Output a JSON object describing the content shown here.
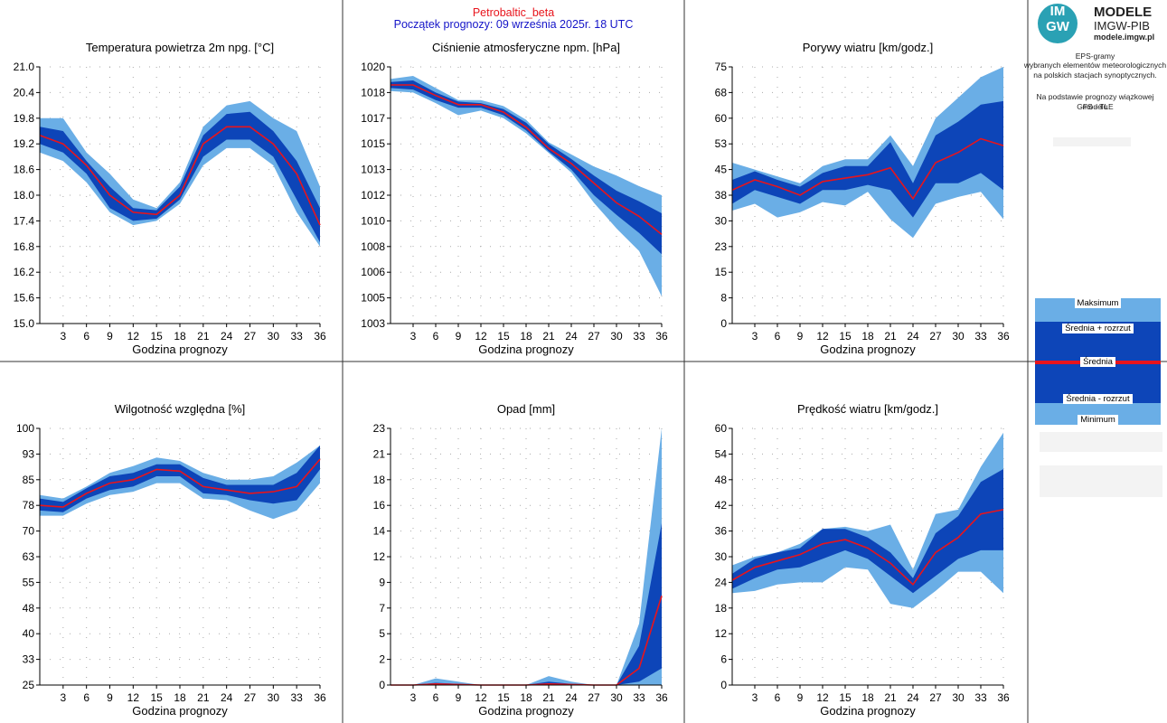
{
  "header": {
    "title": "Petrobaltic_beta",
    "subtitle": "Początek prognozy: 09 września 2025r. 18 UTC"
  },
  "logo": {
    "mark_top": "IM",
    "mark_bottom": "GW",
    "line1": "MODELE",
    "line2": "IMGW-PIB",
    "line3": "modele.imgw.pl"
  },
  "description": [
    "EPS-gramy",
    "wybranych elementów meteorologicznych",
    "na polskich stacjach synoptycznych.",
    "Na podstawie prognozy wiązkowej modelu",
    "GFS - TLE"
  ],
  "legend": {
    "max": "Maksimum",
    "plus": "Średnia + rozrzut",
    "mean": "Średnia",
    "minus": "Średnia - rozrzut",
    "min": "Minimum"
  },
  "colors": {
    "outer_band": "#6aaee6",
    "inner_band": "#0d45b8",
    "mean_line": "#e8141c",
    "title_red": "#e8141c",
    "subtitle_blue": "#1414c8"
  },
  "chart_data": [
    {
      "type": "area",
      "title": "Temperatura powietrza 2m npg. [°C]",
      "xlabel": "Godzina prognozy",
      "ylim": [
        15.0,
        21.0
      ],
      "yticks": [
        "15.0",
        "15.6",
        "16.2",
        "16.8",
        "17.4",
        "18.0",
        "18.6",
        "19.2",
        "19.8",
        "20.4",
        "21.0"
      ],
      "x": [
        0,
        3,
        6,
        9,
        12,
        15,
        18,
        21,
        24,
        27,
        30,
        33,
        36
      ],
      "xticks": [
        3,
        6,
        9,
        12,
        15,
        18,
        21,
        24,
        27,
        30,
        33,
        36
      ],
      "series": [
        {
          "role": "max",
          "values": [
            19.8,
            19.8,
            19.0,
            18.5,
            17.9,
            17.7,
            18.3,
            19.6,
            20.1,
            20.2,
            19.8,
            19.5,
            18.2
          ]
        },
        {
          "role": "mean_plus",
          "values": [
            19.6,
            19.5,
            18.8,
            18.2,
            17.7,
            17.65,
            18.2,
            19.4,
            19.9,
            19.95,
            19.5,
            18.8,
            17.7
          ]
        },
        {
          "role": "mean",
          "values": [
            19.4,
            19.2,
            18.7,
            18.0,
            17.6,
            17.55,
            18.0,
            19.2,
            19.6,
            19.6,
            19.2,
            18.5,
            17.3
          ]
        },
        {
          "role": "mean_minus",
          "values": [
            19.2,
            19.0,
            18.5,
            17.7,
            17.4,
            17.45,
            17.9,
            18.9,
            19.3,
            19.3,
            18.9,
            17.9,
            16.9
          ]
        },
        {
          "role": "min",
          "values": [
            19.0,
            18.8,
            18.3,
            17.6,
            17.3,
            17.4,
            17.8,
            18.7,
            19.1,
            19.1,
            18.7,
            17.6,
            16.8
          ]
        }
      ]
    },
    {
      "type": "area",
      "title": "Ciśnienie atmosferyczne npm. [hPa]",
      "xlabel": "Godzina prognozy",
      "ylim": [
        1003,
        1020
      ],
      "yticks": [
        "1003",
        "1005",
        "1006",
        "1008",
        "1010",
        "1012",
        "1013",
        "1015",
        "1017",
        "1018",
        "1020"
      ],
      "x": [
        0,
        3,
        6,
        9,
        12,
        15,
        18,
        21,
        24,
        27,
        30,
        33,
        36
      ],
      "xticks": [
        3,
        6,
        9,
        12,
        15,
        18,
        21,
        24,
        27,
        30,
        33,
        36
      ],
      "series": [
        {
          "role": "max",
          "values": [
            1019.2,
            1019.4,
            1018.6,
            1017.8,
            1017.8,
            1017.4,
            1016.5,
            1015.0,
            1014.2,
            1013.4,
            1012.8,
            1012.1,
            1011.5
          ]
        },
        {
          "role": "mean_plus",
          "values": [
            1019.0,
            1019.1,
            1018.3,
            1017.7,
            1017.6,
            1017.2,
            1016.3,
            1014.9,
            1013.9,
            1012.8,
            1011.8,
            1011.1,
            1010.3
          ]
        },
        {
          "role": "mean",
          "values": [
            1018.8,
            1018.8,
            1018.1,
            1017.5,
            1017.5,
            1017.0,
            1016.0,
            1014.6,
            1013.6,
            1012.3,
            1011.0,
            1010.1,
            1008.9
          ]
        },
        {
          "role": "mean_minus",
          "values": [
            1018.6,
            1018.5,
            1017.8,
            1017.3,
            1017.3,
            1016.8,
            1015.8,
            1014.4,
            1013.2,
            1011.5,
            1010.2,
            1009.0,
            1007.6
          ]
        },
        {
          "role": "min",
          "values": [
            1018.4,
            1018.3,
            1017.6,
            1016.8,
            1017.1,
            1016.6,
            1015.6,
            1014.3,
            1013.0,
            1011.0,
            1009.3,
            1007.8,
            1004.8
          ]
        }
      ]
    },
    {
      "type": "area",
      "title": "Porywy wiatru [km/godz.]",
      "xlabel": "Godzina prognozy",
      "ylim": [
        0,
        75
      ],
      "yticks": [
        "0",
        "8",
        "15",
        "23",
        "30",
        "38",
        "45",
        "53",
        "60",
        "68",
        "75"
      ],
      "x": [
        0,
        3,
        6,
        9,
        12,
        15,
        18,
        21,
        24,
        27,
        30,
        33,
        36
      ],
      "xticks": [
        3,
        6,
        9,
        12,
        15,
        18,
        21,
        24,
        27,
        30,
        33,
        36
      ],
      "series": [
        {
          "role": "max",
          "values": [
            47,
            45,
            43,
            41,
            46,
            48,
            48,
            55,
            46,
            60,
            66,
            72,
            75
          ]
        },
        {
          "role": "mean_plus",
          "values": [
            42,
            44.5,
            42,
            40,
            44,
            46,
            46,
            53,
            41,
            55,
            59,
            64,
            65
          ]
        },
        {
          "role": "mean",
          "values": [
            39,
            42,
            40,
            37.5,
            41.5,
            42.5,
            43.5,
            45.5,
            36.5,
            47,
            50,
            54,
            52
          ]
        },
        {
          "role": "mean_minus",
          "values": [
            35,
            39,
            37,
            35,
            39,
            39,
            40.5,
            39,
            31,
            41,
            41,
            44,
            39
          ]
        },
        {
          "role": "min",
          "values": [
            33,
            35,
            31,
            32.5,
            35.5,
            34.5,
            38.5,
            30.5,
            25,
            35,
            37,
            38.5,
            30.5
          ]
        }
      ]
    },
    {
      "type": "area",
      "title": "Wilgotność względna [%]",
      "xlabel": "Godzina prognozy",
      "ylim": [
        25,
        100
      ],
      "yticks": [
        "25",
        "33",
        "40",
        "48",
        "55",
        "63",
        "70",
        "78",
        "85",
        "93",
        "100"
      ],
      "x": [
        0,
        3,
        6,
        9,
        12,
        15,
        18,
        21,
        24,
        27,
        30,
        33,
        36
      ],
      "xticks": [
        3,
        6,
        9,
        12,
        15,
        18,
        21,
        24,
        27,
        30,
        33,
        36
      ],
      "series": [
        {
          "role": "max",
          "values": [
            80.5,
            79.5,
            83,
            87,
            89,
            91.5,
            90.5,
            87,
            85,
            85,
            86,
            90,
            95
          ]
        },
        {
          "role": "mean_plus",
          "values": [
            79.5,
            78.5,
            82.5,
            86,
            87,
            89.5,
            89.5,
            85.5,
            83.5,
            83.5,
            83.5,
            87,
            95
          ]
        },
        {
          "role": "mean",
          "values": [
            77.5,
            77,
            81,
            84,
            85,
            88,
            87.5,
            83,
            82,
            81,
            81.5,
            83,
            91
          ]
        },
        {
          "role": "mean_minus",
          "values": [
            76,
            75.5,
            79.5,
            82,
            83,
            86,
            86,
            81,
            80.5,
            79,
            78,
            79,
            88
          ]
        },
        {
          "role": "min",
          "values": [
            74.5,
            74.5,
            78,
            80.5,
            81.5,
            84,
            84,
            79.5,
            79,
            76,
            73.5,
            76,
            84
          ]
        }
      ]
    },
    {
      "type": "area",
      "title": "Opad [mm]",
      "xlabel": "Godzina prognozy",
      "ylim": [
        0,
        23
      ],
      "yticks": [
        "0",
        "2",
        "5",
        "7",
        "9",
        "12",
        "14",
        "16",
        "18",
        "21",
        "23"
      ],
      "x": [
        0,
        3,
        6,
        9,
        12,
        15,
        18,
        21,
        24,
        27,
        30,
        33,
        36
      ],
      "xticks": [
        3,
        6,
        9,
        12,
        15,
        18,
        21,
        24,
        27,
        30,
        33,
        36
      ],
      "series": [
        {
          "role": "max",
          "values": [
            0,
            0,
            0.6,
            0.3,
            0,
            0,
            0,
            0.8,
            0.3,
            0,
            0,
            5.5,
            23
          ]
        },
        {
          "role": "mean_plus",
          "values": [
            0,
            0,
            0.2,
            0.1,
            0,
            0,
            0,
            0.3,
            0.1,
            0,
            0,
            3.5,
            14.5
          ]
        },
        {
          "role": "mean",
          "values": [
            0,
            0,
            0.1,
            0.05,
            0,
            0,
            0,
            0.1,
            0.05,
            0,
            0,
            1.5,
            8
          ]
        },
        {
          "role": "mean_minus",
          "values": [
            0,
            0,
            0,
            0,
            0,
            0,
            0,
            0,
            0,
            0,
            0,
            0.3,
            1.5
          ]
        },
        {
          "role": "min",
          "values": [
            0,
            0,
            0,
            0,
            0,
            0,
            0,
            0,
            0,
            0,
            0,
            0,
            0
          ]
        }
      ]
    },
    {
      "type": "area",
      "title": "Prędkość wiatru [km/godz.]",
      "xlabel": "Godzina prognozy",
      "ylim": [
        0,
        60
      ],
      "yticks": [
        "0",
        "6",
        "12",
        "18",
        "24",
        "30",
        "36",
        "42",
        "48",
        "54",
        "60"
      ],
      "x": [
        0,
        3,
        6,
        9,
        12,
        15,
        18,
        21,
        24,
        27,
        30,
        33,
        36
      ],
      "xticks": [
        3,
        6,
        9,
        12,
        15,
        18,
        21,
        24,
        27,
        30,
        33,
        36
      ],
      "series": [
        {
          "role": "max",
          "values": [
            28,
            30,
            31,
            33,
            36.5,
            37,
            36,
            37.5,
            27,
            40,
            41,
            51,
            59
          ]
        },
        {
          "role": "mean_plus",
          "values": [
            26,
            29.5,
            31,
            32,
            36.5,
            36.5,
            34.5,
            31,
            25,
            35.5,
            39.5,
            47.5,
            50.5
          ]
        },
        {
          "role": "mean",
          "values": [
            24.5,
            27.5,
            29,
            30.5,
            33,
            34,
            32,
            28.5,
            23.5,
            31,
            34.5,
            40,
            41
          ]
        },
        {
          "role": "mean_minus",
          "values": [
            22.5,
            25,
            27,
            27.5,
            29.5,
            31.5,
            29.5,
            25.5,
            21.5,
            25.5,
            29.5,
            31.5,
            31.5
          ]
        },
        {
          "role": "min",
          "values": [
            21.5,
            22,
            23.5,
            24,
            24,
            27.5,
            27,
            19,
            18,
            22,
            26.5,
            26.5,
            21.5
          ]
        }
      ]
    }
  ]
}
